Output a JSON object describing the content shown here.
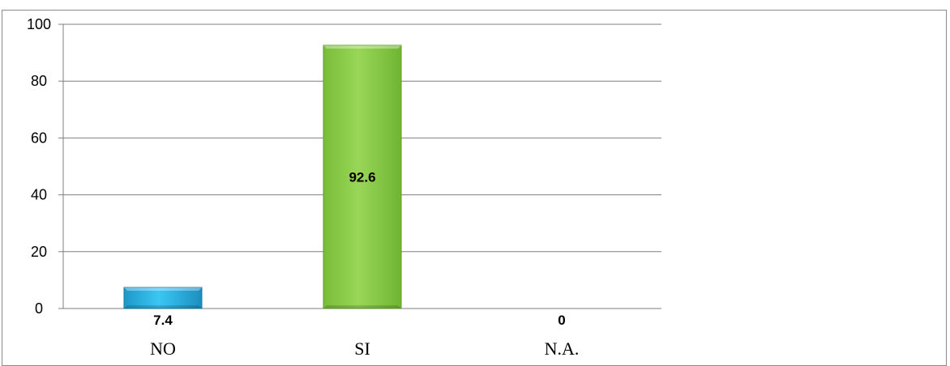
{
  "chart_data": {
    "type": "bar",
    "categories": [
      "NO",
      "SI",
      "N.A."
    ],
    "values": [
      7.4,
      92.6,
      0
    ],
    "data_labels": [
      "7.4",
      "92.6",
      "0"
    ],
    "ylim": [
      0,
      100
    ],
    "yticks": [
      "0",
      "20",
      "40",
      "60",
      "80",
      "100"
    ],
    "grid": true,
    "legend": "none",
    "colors": {
      "NO": "#29b6e8",
      "SI": "#8ccf47",
      "N.A.": "#8ccf47"
    }
  }
}
